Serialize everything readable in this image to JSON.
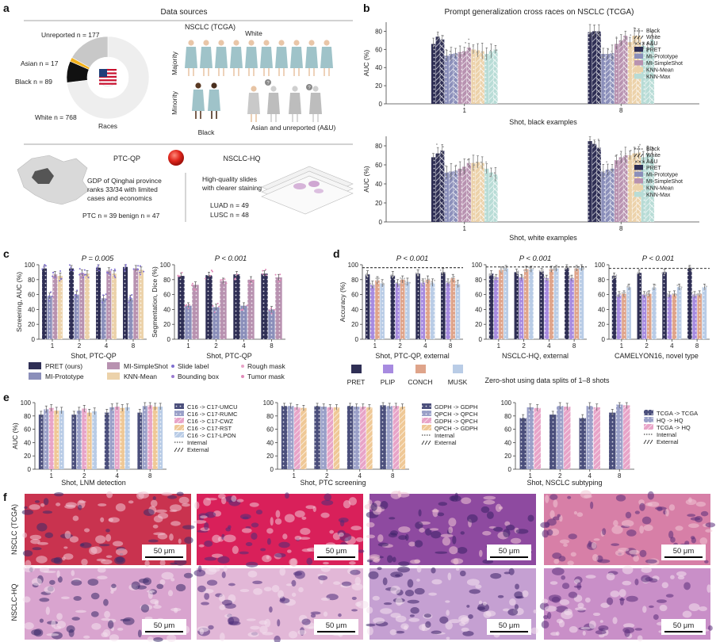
{
  "panel_letters": {
    "a": "a",
    "b": "b",
    "c": "c",
    "d": "d",
    "e": "e",
    "f": "f"
  },
  "colors": {
    "PRET": "#2f2f55",
    "MI-Prototype": "#8b8fba",
    "MI-SimpleShot": "#b892b0",
    "KNN-Mean": "#ecd2aa",
    "KNN-Max": "#b8dcd6",
    "PLIP": "#a78be0",
    "CONCH": "#dfa48a",
    "MUSK": "#b9cce6",
    "pink": "#e8a4c8",
    "purple": "#9b7bd0"
  },
  "panel_a": {
    "title": "Data sources",
    "donut": {
      "unreported": "Unreported n = 177",
      "asian": "Asian n = 17",
      "black": "Black n = 89",
      "white": "White n = 768",
      "center": "Races",
      "values": [
        768,
        177,
        17,
        89
      ]
    },
    "nsclc_title": "NSCLC (TCGA)",
    "white_label": "White",
    "majority": "Majority",
    "minority": "Minority",
    "black_label": "Black",
    "au_label": "Asian and unreported (A&U)",
    "ptc_title": "PTC-QP",
    "gdp_text": [
      "GDP of Qinghai province",
      "ranks 33/34 with limited",
      "cases and economics"
    ],
    "ptc_counts": "PTC n = 39 benign n = 47",
    "hq_title": "NSCLC-HQ",
    "hq_text": [
      "High-quality slides",
      "with clearer staining"
    ],
    "luad": "LUAD n = 49",
    "lusc": "LUSC n = 48"
  },
  "panel_b": {
    "title": "Prompt generalization cross races on NSCLC (TCGA)",
    "legend_types": [
      "Black",
      "White",
      "A&U"
    ],
    "legend_methods": [
      "PRET",
      "MI-Prototype",
      "MI-SimpleShot",
      "KNN-Mean",
      "KNN-Max"
    ],
    "top_xlabel": "Shot, black examples",
    "bottom_xlabel": "Shot, white examples",
    "ylabel": "AUC (%)"
  },
  "panel_c": {
    "p1": "P = 0.005",
    "p2": "P < 0.001",
    "ylabel1": "Screening, AUC (%)",
    "ylabel2": "Segmentation, Dice (%)",
    "xlabel": "Shot, PTC-QP",
    "legend": [
      "PRET (ours)",
      "MI-Prototype",
      "MI-SimpleShot",
      "KNN-Mean"
    ],
    "legend_marks": [
      "Slide label",
      "Bounding box",
      "Rough mask",
      "Tumor mask"
    ]
  },
  "panel_d": {
    "p": "P < 0.001",
    "ylabel": "Accuracy (%)",
    "xlabels": [
      "Shot, PTC-QP, external",
      "NSCLC-HQ, external",
      "CAMELYON16, novel type"
    ],
    "legend": [
      "PRET",
      "PLIP",
      "CONCH",
      "MUSK"
    ],
    "caption": "Zero-shot using data splits of 1–8 shots"
  },
  "panel_e": {
    "ylabel": "AUC (%)",
    "xlabels": [
      "Shot, LNM detection",
      "Shot, PTC screening",
      "Shot, NSCLC subtyping"
    ],
    "legend1": [
      "C16 -> C17-UMCU",
      "C16 -> C17-RUMC",
      "C16 -> C17-CWZ",
      "C16 -> C17-RST",
      "C16 -> C17-LPON",
      "Internal",
      "External"
    ],
    "legend2": [
      "GDPH -> GDPH",
      "QPCH -> QPCH",
      "GDPH -> QPCH",
      "QPCH -> GDPH",
      "Internal",
      "External"
    ],
    "legend3": [
      "TCGA -> TCGA",
      "HQ -> HQ",
      "TCGA -> HQ",
      "Internal",
      "External"
    ]
  },
  "panel_f": {
    "row1": "NSCLC (TCGA)",
    "row2": "NSCLC-HQ",
    "scale": "50 μm"
  },
  "chart_data": [
    {
      "id": "b-top",
      "type": "bar",
      "title": "Prompt generalization cross races on NSCLC (TCGA)",
      "xlabel": "Shot, black examples",
      "ylabel": "AUC (%)",
      "ylim": [
        0,
        90
      ],
      "yticks": [
        0,
        20,
        40,
        60,
        80
      ],
      "categories": [
        "1",
        "8"
      ],
      "series": [
        {
          "name": "PRET",
          "values": [
            [
              66,
              74,
              71
            ],
            [
              79,
              80,
              80
            ]
          ]
        },
        {
          "name": "MI-Prototype",
          "values": [
            [
              53,
              55,
              56
            ],
            [
              55,
              55,
              56
            ]
          ]
        },
        {
          "name": "MI-SimpleShot",
          "values": [
            [
              57,
              58,
              62
            ],
            [
              66,
              70,
              75
            ]
          ]
        },
        {
          "name": "KNN-Mean",
          "values": [
            [
              60,
              59,
              58
            ],
            [
              68,
              75,
              75
            ]
          ]
        },
        {
          "name": "KNN-Max",
          "values": [
            [
              55,
              58,
              60
            ],
            [
              64,
              62,
              71
            ]
          ]
        }
      ]
    },
    {
      "id": "b-bottom",
      "type": "bar",
      "xlabel": "Shot, white examples",
      "ylabel": "AUC (%)",
      "ylim": [
        0,
        90
      ],
      "yticks": [
        0,
        20,
        40,
        60,
        80
      ],
      "categories": [
        "1",
        "8"
      ],
      "series": [
        {
          "name": "PRET",
          "values": [
            [
              68,
              72,
              75
            ],
            [
              85,
              82,
              78
            ]
          ]
        },
        {
          "name": "MI-Prototype",
          "values": [
            [
              52,
              53,
              54
            ],
            [
              53,
              55,
              56
            ]
          ]
        },
        {
          "name": "MI-SimpleShot",
          "values": [
            [
              56,
              58,
              62
            ],
            [
              65,
              68,
              70
            ]
          ]
        },
        {
          "name": "KNN-Mean",
          "values": [
            [
              62,
              63,
              62
            ],
            [
              70,
              72,
              73
            ]
          ]
        },
        {
          "name": "KNN-Max",
          "values": [
            [
              56,
              52,
              50
            ],
            [
              68,
              72,
              70
            ]
          ]
        }
      ]
    },
    {
      "id": "c-left",
      "type": "bar",
      "ylabel": "Screening, AUC (%)",
      "xlabel": "Shot, PTC-QP",
      "ylim": [
        0,
        100
      ],
      "yticks": [
        0,
        20,
        40,
        60,
        80,
        100
      ],
      "categories": [
        "1",
        "2",
        "4",
        "8"
      ],
      "series": [
        {
          "name": "PRET (ours)",
          "values": [
            95,
            95,
            96,
            97
          ]
        },
        {
          "name": "MI-Prototype",
          "values": [
            58,
            60,
            55,
            55
          ]
        },
        {
          "name": "MI-SimpleShot",
          "values": [
            87,
            89,
            92,
            95
          ]
        },
        {
          "name": "KNN-Mean",
          "values": [
            85,
            88,
            88,
            93
          ]
        }
      ]
    },
    {
      "id": "c-right",
      "type": "bar",
      "ylabel": "Segmentation, Dice (%)",
      "xlabel": "Shot, PTC-QP",
      "ylim": [
        0,
        100
      ],
      "yticks": [
        0,
        20,
        40,
        60,
        80,
        100
      ],
      "categories": [
        "1",
        "2",
        "4",
        "8"
      ],
      "series": [
        {
          "name": "PRET (ours)",
          "values": [
            85,
            86,
            87,
            88
          ]
        },
        {
          "name": "MI-Prototype",
          "values": [
            45,
            43,
            45,
            40
          ]
        },
        {
          "name": "MI-SimpleShot",
          "values": [
            73,
            78,
            80,
            83
          ]
        }
      ]
    },
    {
      "id": "d1",
      "type": "bar",
      "ylabel": "Accuracy (%)",
      "xlabel": "Shot, PTC-QP, external",
      "ylim": [
        0,
        100
      ],
      "yticks": [
        0,
        20,
        40,
        60,
        80,
        100
      ],
      "categories": [
        "1",
        "2",
        "4",
        "8"
      ],
      "reference_line": 96,
      "series": [
        {
          "name": "PRET",
          "values": [
            87,
            86,
            88,
            90
          ]
        },
        {
          "name": "PLIP",
          "values": [
            73,
            75,
            76,
            76
          ]
        },
        {
          "name": "CONCH",
          "values": [
            79,
            80,
            80,
            82
          ]
        },
        {
          "name": "MUSK",
          "values": [
            75,
            77,
            76,
            74
          ]
        }
      ]
    },
    {
      "id": "d2",
      "type": "bar",
      "xlabel": "NSCLC-HQ, external",
      "ylim": [
        0,
        100
      ],
      "yticks": [
        0,
        20,
        40,
        60,
        80,
        100
      ],
      "categories": [
        "1",
        "2",
        "4",
        "8"
      ],
      "reference_line": 97,
      "series": [
        {
          "name": "PRET",
          "values": [
            88,
            90,
            91,
            96
          ]
        },
        {
          "name": "PLIP",
          "values": [
            83,
            83,
            82,
            82
          ]
        },
        {
          "name": "CONCH",
          "values": [
            93,
            94,
            94,
            95
          ]
        },
        {
          "name": "MUSK",
          "values": [
            95,
            94,
            95,
            96
          ]
        }
      ]
    },
    {
      "id": "d3",
      "type": "bar",
      "xlabel": "CAMELYON16, novel type",
      "ylim": [
        0,
        100
      ],
      "yticks": [
        0,
        20,
        40,
        60,
        80,
        100
      ],
      "categories": [
        "1",
        "2",
        "4",
        "8"
      ],
      "reference_line": 95,
      "series": [
        {
          "name": "PRET",
          "values": [
            85,
            89,
            90,
            95
          ]
        },
        {
          "name": "PLIP",
          "values": [
            60,
            60,
            60,
            60
          ]
        },
        {
          "name": "CONCH",
          "values": [
            61,
            61,
            61,
            61
          ]
        },
        {
          "name": "MUSK",
          "values": [
            70,
            70,
            70,
            70
          ]
        }
      ]
    },
    {
      "id": "e1",
      "type": "bar",
      "ylabel": "AUC (%)",
      "xlabel": "Shot, LNM detection",
      "ylim": [
        0,
        100
      ],
      "yticks": [
        0,
        20,
        40,
        60,
        80,
        100
      ],
      "categories": [
        "1",
        "2",
        "4",
        "8"
      ],
      "series": [
        {
          "name": "C16 -> C17-UMCU",
          "values": [
            82,
            82,
            85,
            85
          ]
        },
        {
          "name": "C16 -> C17-RUMC",
          "values": [
            90,
            88,
            93,
            95
          ]
        },
        {
          "name": "C16 -> C17-CWZ",
          "values": [
            92,
            91,
            94,
            96
          ]
        },
        {
          "name": "C16 -> C17-RST",
          "values": [
            88,
            85,
            92,
            94
          ]
        },
        {
          "name": "C16 -> C17-LPON",
          "values": [
            88,
            87,
            93,
            94
          ]
        }
      ]
    },
    {
      "id": "e2",
      "type": "bar",
      "xlabel": "Shot, PTC screening",
      "ylim": [
        0,
        100
      ],
      "yticks": [
        0,
        20,
        40,
        60,
        80,
        100
      ],
      "categories": [
        "1",
        "2",
        "4",
        "8"
      ],
      "series": [
        {
          "name": "GDPH -> GDPH",
          "values": [
            95,
            95,
            95,
            96
          ]
        },
        {
          "name": "QPCH -> QPCH",
          "values": [
            95,
            94,
            94,
            95
          ]
        },
        {
          "name": "GDPH -> QPCH",
          "values": [
            93,
            93,
            94,
            95
          ]
        },
        {
          "name": "QPCH -> GDPH",
          "values": [
            92,
            93,
            93,
            94
          ]
        }
      ]
    },
    {
      "id": "e3",
      "type": "bar",
      "xlabel": "Shot, NSCLC subtyping",
      "ylim": [
        0,
        100
      ],
      "yticks": [
        0,
        20,
        40,
        60,
        80,
        100
      ],
      "categories": [
        "1",
        "2",
        "4",
        "8"
      ],
      "series": [
        {
          "name": "TCGA -> TCGA",
          "values": [
            77,
            82,
            77,
            85
          ]
        },
        {
          "name": "HQ -> HQ",
          "values": [
            93,
            95,
            95,
            97
          ]
        },
        {
          "name": "TCGA -> HQ",
          "values": [
            92,
            94,
            93,
            96
          ]
        }
      ]
    }
  ]
}
